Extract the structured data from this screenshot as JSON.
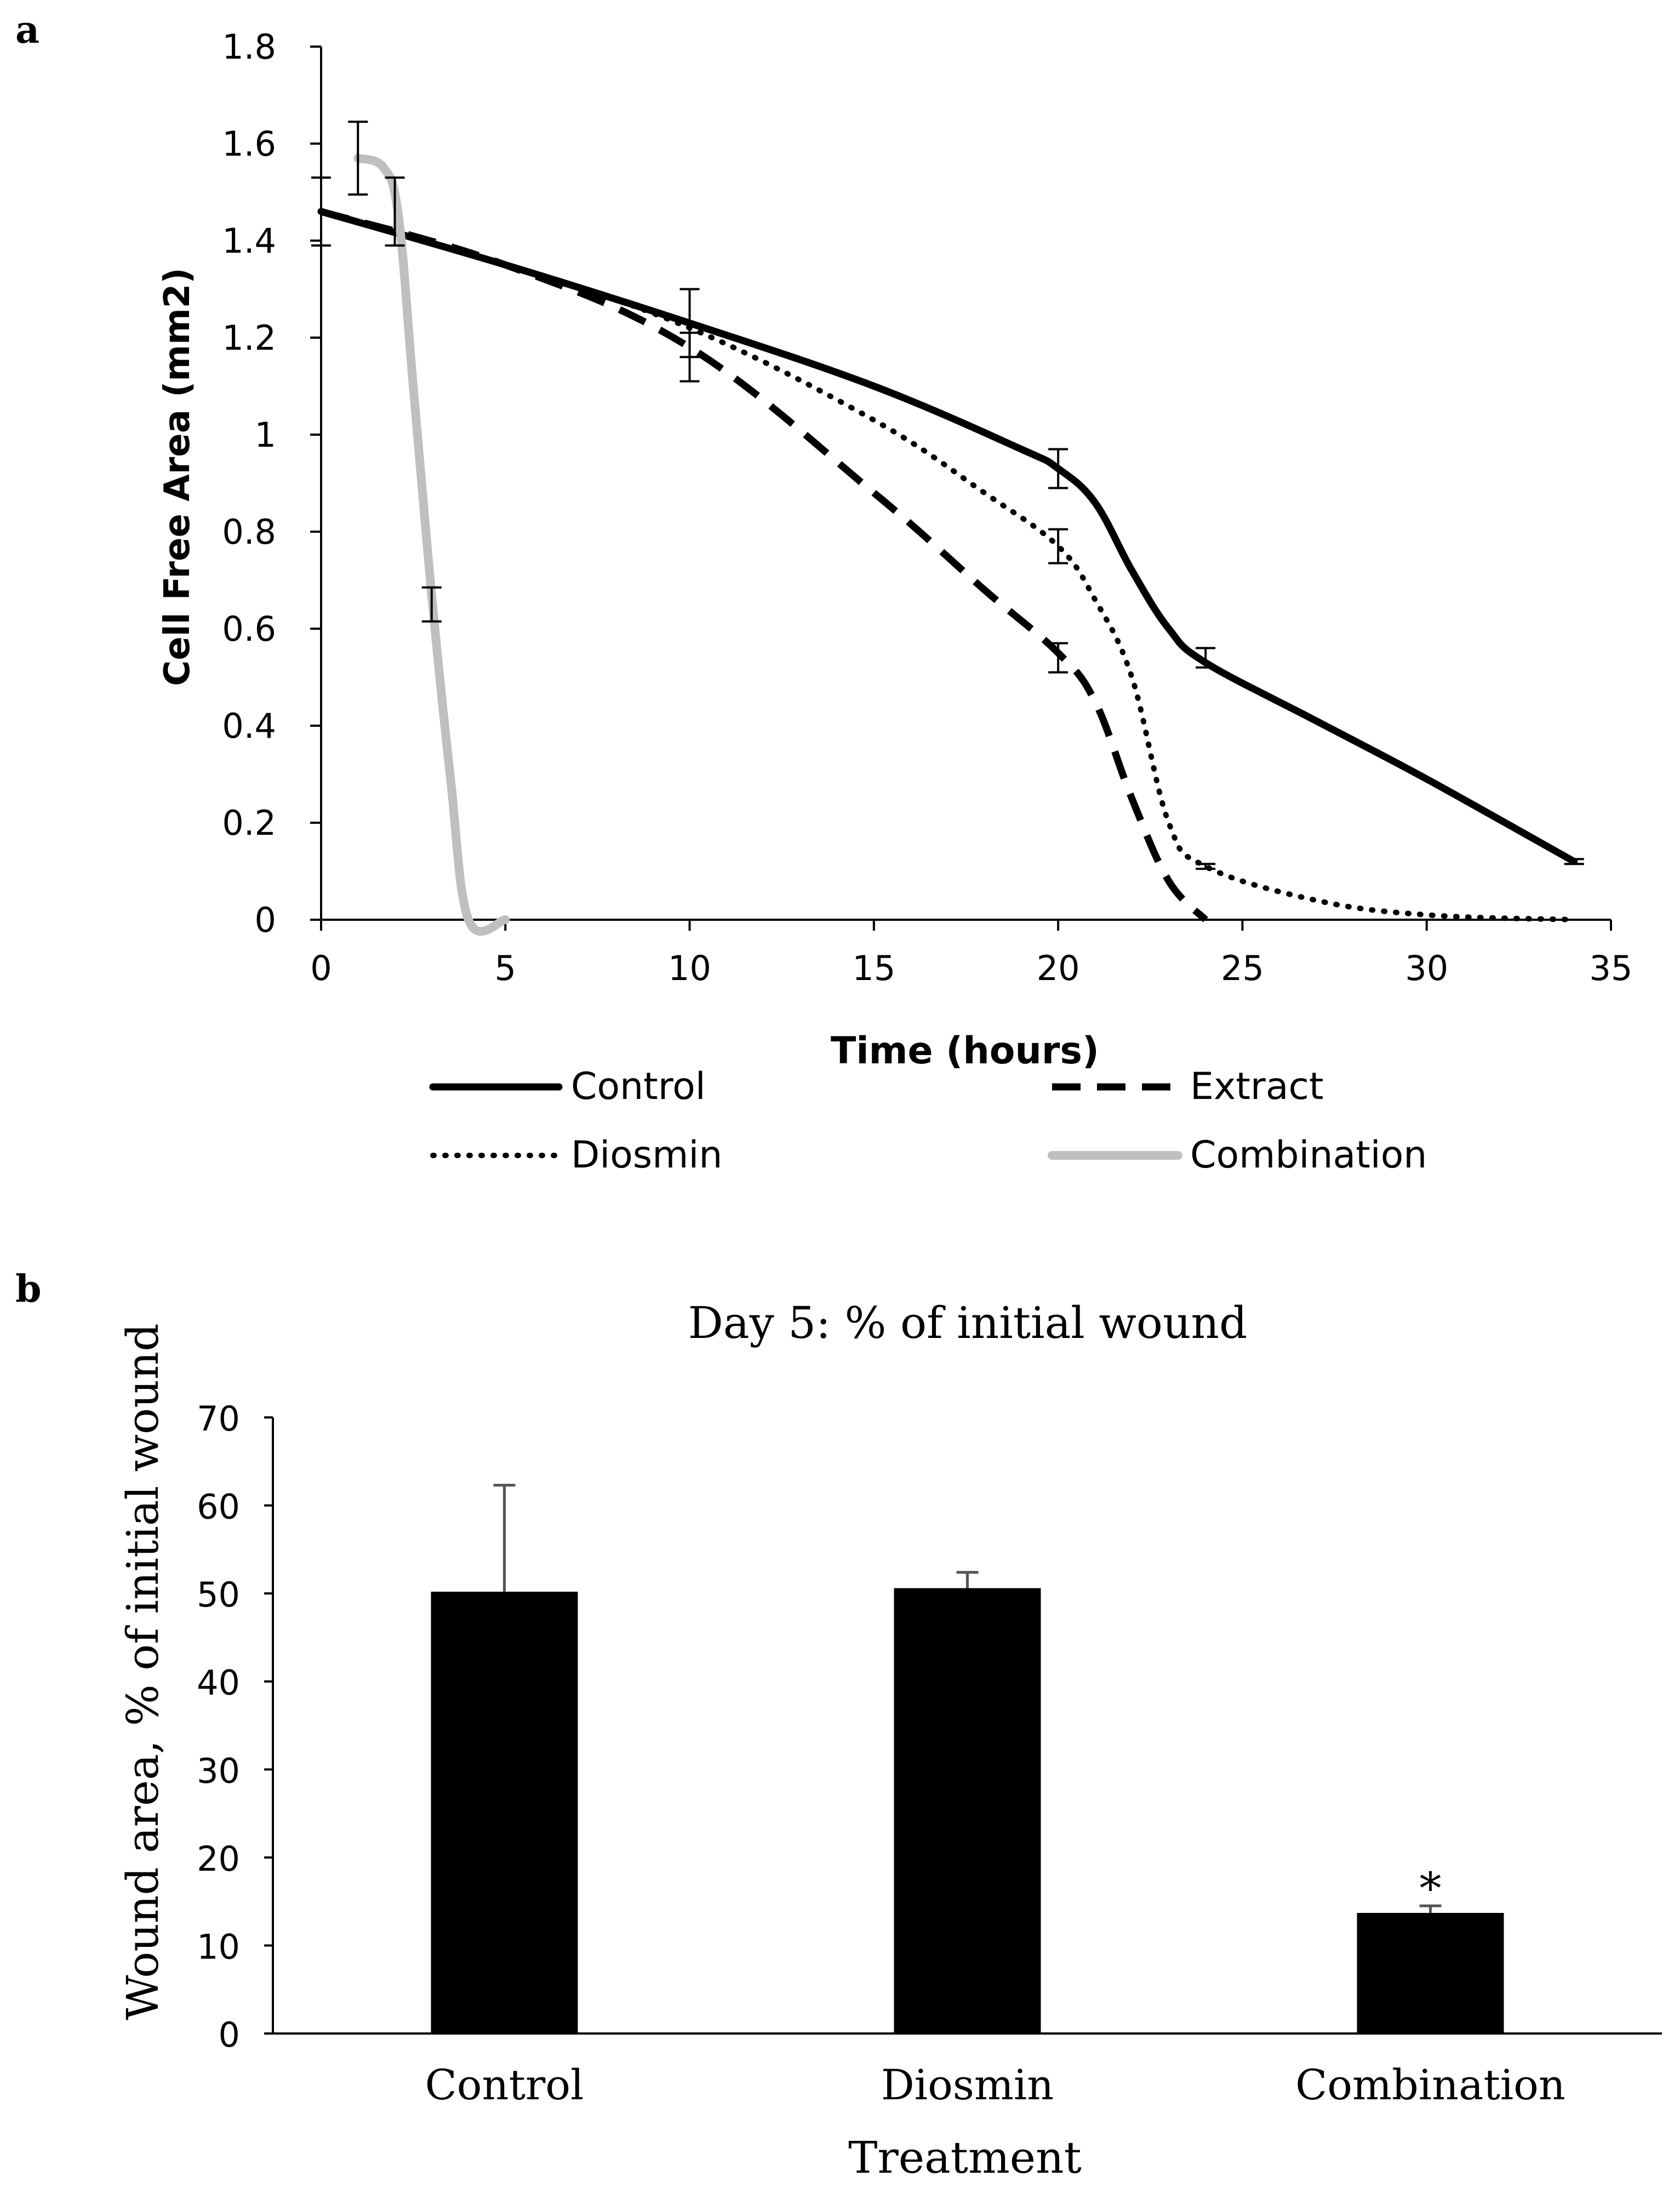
{
  "panel_labels": {
    "a": "a",
    "b": "b"
  },
  "colors": {
    "control": "#000000",
    "extract": "#000000",
    "diosmin": "#000000",
    "combination": "#bfbfbf",
    "axis": "#000000",
    "bar": "#000000",
    "errorbar_b": "#555555"
  },
  "chart_data": [
    {
      "type": "line",
      "title": "",
      "xlabel": "Time (hours)",
      "ylabel": "Cell Free Area (mm2)",
      "xlim": [
        0,
        35
      ],
      "ylim": [
        0,
        1.8
      ],
      "x_ticks": [
        "0",
        "5",
        "10",
        "15",
        "20",
        "25",
        "30",
        "35"
      ],
      "y_ticks": [
        "0",
        "0.2",
        "0.4",
        "0.6",
        "0.8",
        "1",
        "1.2",
        "1.4",
        "1.6",
        "1.8"
      ],
      "legend_position": "bottom",
      "series": [
        {
          "name": "Control",
          "style": "solid",
          "points": [
            [
              0,
              1.46
            ],
            [
              5,
              1.35
            ],
            [
              10,
              1.23
            ],
            [
              15,
              1.1
            ],
            [
              19,
              0.97
            ],
            [
              20,
              0.93
            ],
            [
              21,
              0.86
            ],
            [
              22,
              0.72
            ],
            [
              23,
              0.6
            ],
            [
              24,
              0.53
            ],
            [
              27,
              0.41
            ],
            [
              30,
              0.29
            ],
            [
              34,
              0.12
            ]
          ],
          "error_bars": [
            {
              "x": 0,
              "y": 1.46,
              "err": 0.07
            },
            {
              "x": 10,
              "y": 1.23,
              "err": 0.07
            },
            {
              "x": 20,
              "y": 0.93,
              "err": 0.04
            },
            {
              "x": 24,
              "y": 0.54,
              "err": 0.02
            },
            {
              "x": 34,
              "y": 0.12,
              "err": 0.005
            }
          ]
        },
        {
          "name": "Extract",
          "style": "dashed",
          "points": [
            [
              0,
              1.46
            ],
            [
              5,
              1.35
            ],
            [
              10,
              1.18
            ],
            [
              15,
              0.88
            ],
            [
              18,
              0.68
            ],
            [
              20,
              0.55
            ],
            [
              21,
              0.45
            ],
            [
              22,
              0.25
            ],
            [
              23,
              0.08
            ],
            [
              24,
              0.0
            ]
          ],
          "error_bars": [
            {
              "x": 2,
              "y": 1.46,
              "err": 0.07
            },
            {
              "x": 10,
              "y": 1.16,
              "err": 0.05
            },
            {
              "x": 20,
              "y": 0.54,
              "err": 0.03
            }
          ]
        },
        {
          "name": "Diosmin",
          "style": "dotted",
          "points": [
            [
              0,
              1.46
            ],
            [
              5,
              1.35
            ],
            [
              10,
              1.22
            ],
            [
              15,
              1.03
            ],
            [
              18,
              0.88
            ],
            [
              20,
              0.77
            ],
            [
              21,
              0.66
            ],
            [
              22,
              0.5
            ],
            [
              23,
              0.2
            ],
            [
              24,
              0.11
            ],
            [
              27,
              0.04
            ],
            [
              30,
              0.01
            ],
            [
              34,
              0.0
            ]
          ],
          "error_bars": [
            {
              "x": 20,
              "y": 0.77,
              "err": 0.035
            },
            {
              "x": 24,
              "y": 0.11,
              "err": 0.005
            }
          ]
        },
        {
          "name": "Combination",
          "style": "solid",
          "points": [
            [
              1,
              1.57
            ],
            [
              1.7,
              1.55
            ],
            [
              2.1,
              1.45
            ],
            [
              2.5,
              1.1
            ],
            [
              3,
              0.67
            ],
            [
              3.5,
              0.3
            ],
            [
              4,
              0.0
            ],
            [
              5,
              0.0
            ]
          ],
          "error_bars": [
            {
              "x": 1,
              "y": 1.57,
              "err": 0.075
            },
            {
              "x": 3,
              "y": 0.65,
              "err": 0.035
            }
          ]
        }
      ]
    },
    {
      "type": "bar",
      "title": "Day 5: % of initial wound",
      "xlabel": "Treatment",
      "ylabel": "Wound area, % of initial wound",
      "categories": [
        "Control",
        "Diosmin",
        "Combination"
      ],
      "values": [
        50.2,
        50.6,
        13.7
      ],
      "errors": [
        12.1,
        1.8,
        0.8
      ],
      "ylim": [
        0,
        70
      ],
      "y_ticks": [
        "0",
        "10",
        "20",
        "30",
        "40",
        "50",
        "60",
        "70"
      ],
      "annotations": [
        {
          "category": "Combination",
          "text": "*"
        }
      ]
    }
  ]
}
